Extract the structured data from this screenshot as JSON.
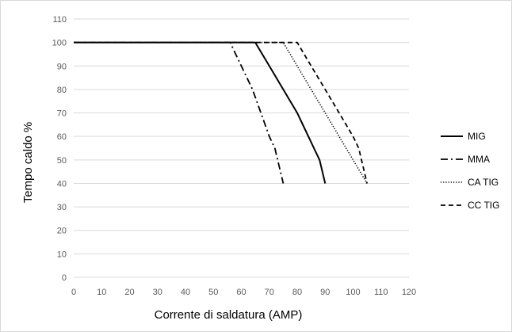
{
  "chart_data": {
    "type": "line",
    "xlabel": "Corrente di saldatura (AMP)",
    "ylabel": "Tempo caldo %",
    "xlim": [
      0,
      120
    ],
    "ylim": [
      0,
      110
    ],
    "x_ticks": [
      0,
      10,
      20,
      30,
      40,
      50,
      60,
      70,
      80,
      90,
      100,
      110,
      120
    ],
    "y_ticks": [
      0,
      10,
      20,
      30,
      40,
      50,
      60,
      70,
      80,
      90,
      100,
      110
    ],
    "grid": "horizontal",
    "legend_position": "right",
    "series": [
      {
        "name": "MIG",
        "style": "solid",
        "color": "#000000",
        "points": [
          [
            0,
            100
          ],
          [
            65,
            100
          ],
          [
            70,
            90
          ],
          [
            75,
            80
          ],
          [
            80,
            70
          ],
          [
            84,
            60
          ],
          [
            86,
            55
          ],
          [
            88,
            50
          ],
          [
            90,
            40
          ]
        ]
      },
      {
        "name": "MMA",
        "style": "dash-dot",
        "color": "#000000",
        "points": [
          [
            0,
            100
          ],
          [
            56,
            100
          ],
          [
            60,
            90
          ],
          [
            64,
            80
          ],
          [
            67,
            70
          ],
          [
            70,
            60
          ],
          [
            72,
            55
          ],
          [
            73,
            50
          ],
          [
            75,
            40
          ]
        ]
      },
      {
        "name": "CA TIG",
        "style": "dotted",
        "color": "#000000",
        "points": [
          [
            0,
            100
          ],
          [
            75,
            100
          ],
          [
            80,
            90
          ],
          [
            85,
            80
          ],
          [
            90,
            70
          ],
          [
            95,
            60
          ],
          [
            100,
            50
          ],
          [
            105,
            40
          ]
        ]
      },
      {
        "name": "CC TIG",
        "style": "dashed",
        "color": "#000000",
        "points": [
          [
            0,
            100
          ],
          [
            80,
            100
          ],
          [
            85,
            90
          ],
          [
            90,
            80
          ],
          [
            95,
            70
          ],
          [
            100,
            60
          ],
          [
            102,
            55
          ],
          [
            103,
            50
          ],
          [
            105,
            40
          ]
        ]
      }
    ]
  }
}
